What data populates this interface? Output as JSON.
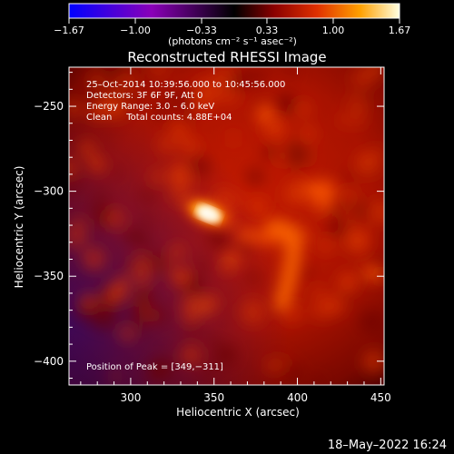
{
  "colorbar": {
    "tick_labels": [
      "−1.67",
      "−1.00",
      "−0.33",
      "0.33",
      "1.00",
      "1.67"
    ],
    "unit_label": "(photons cm⁻² s⁻¹ asec⁻²)",
    "range": [
      -1.67,
      1.67
    ]
  },
  "chart_data": {
    "type": "heatmap",
    "title": "Reconstructed RHESSI Image",
    "xlabel": "Heliocentric X (arcsec)",
    "ylabel": "Heliocentric Y (arcsec)",
    "xlim": [
      263,
      452
    ],
    "ylim": [
      -414,
      -227
    ],
    "x_ticks": [
      "300",
      "350",
      "400",
      "450"
    ],
    "y_ticks": [
      "−250",
      "−300",
      "−350",
      "−400"
    ],
    "x_tick_values": [
      300,
      350,
      400,
      450
    ],
    "y_tick_values": [
      -250,
      -300,
      -350,
      -400
    ],
    "colormap": "black-red-orange-yellow-white",
    "peak": [
      349,
      -311
    ],
    "info_lines": [
      "25–Oct–2014 10:39:56.000 to 10:45:56.000",
      "Detectors: 3F 6F 9F, Att 0",
      "Energy Range: 3.0 – 6.0 keV",
      "Clean     Total counts: 4.88E+04"
    ],
    "peak_label": "Position of Peak = [349,−311]"
  },
  "footer_date": "18–May–2022 16:24"
}
